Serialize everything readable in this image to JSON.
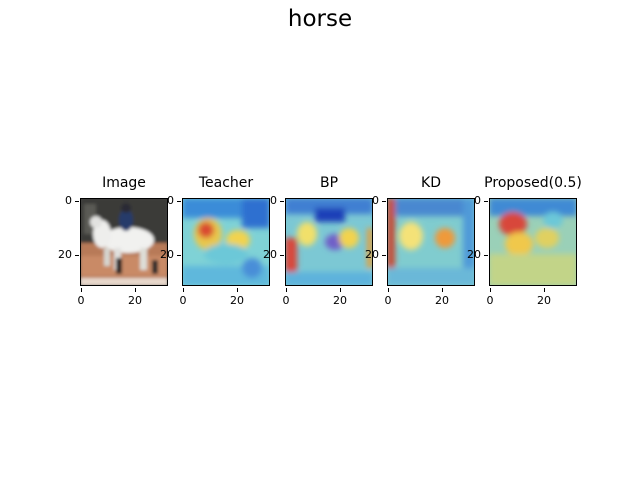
{
  "figure": {
    "title": "horse"
  },
  "panels": [
    {
      "title": "Image",
      "kind": "photo"
    },
    {
      "title": "Teacher",
      "kind": "heatmap"
    },
    {
      "title": "BP",
      "kind": "heatmap"
    },
    {
      "title": "KD",
      "kind": "heatmap"
    },
    {
      "title": "Proposed(0.5)",
      "kind": "heatmap"
    }
  ],
  "axes": {
    "y_ticks": [
      "0",
      "20"
    ],
    "x_ticks": [
      "0",
      "20"
    ]
  },
  "colors": {
    "heat_low": "#1f5fd0",
    "heat_mid": "#6fd6c8",
    "heat_high": "#d83a2a",
    "heat_warm": "#f2d34e"
  }
}
